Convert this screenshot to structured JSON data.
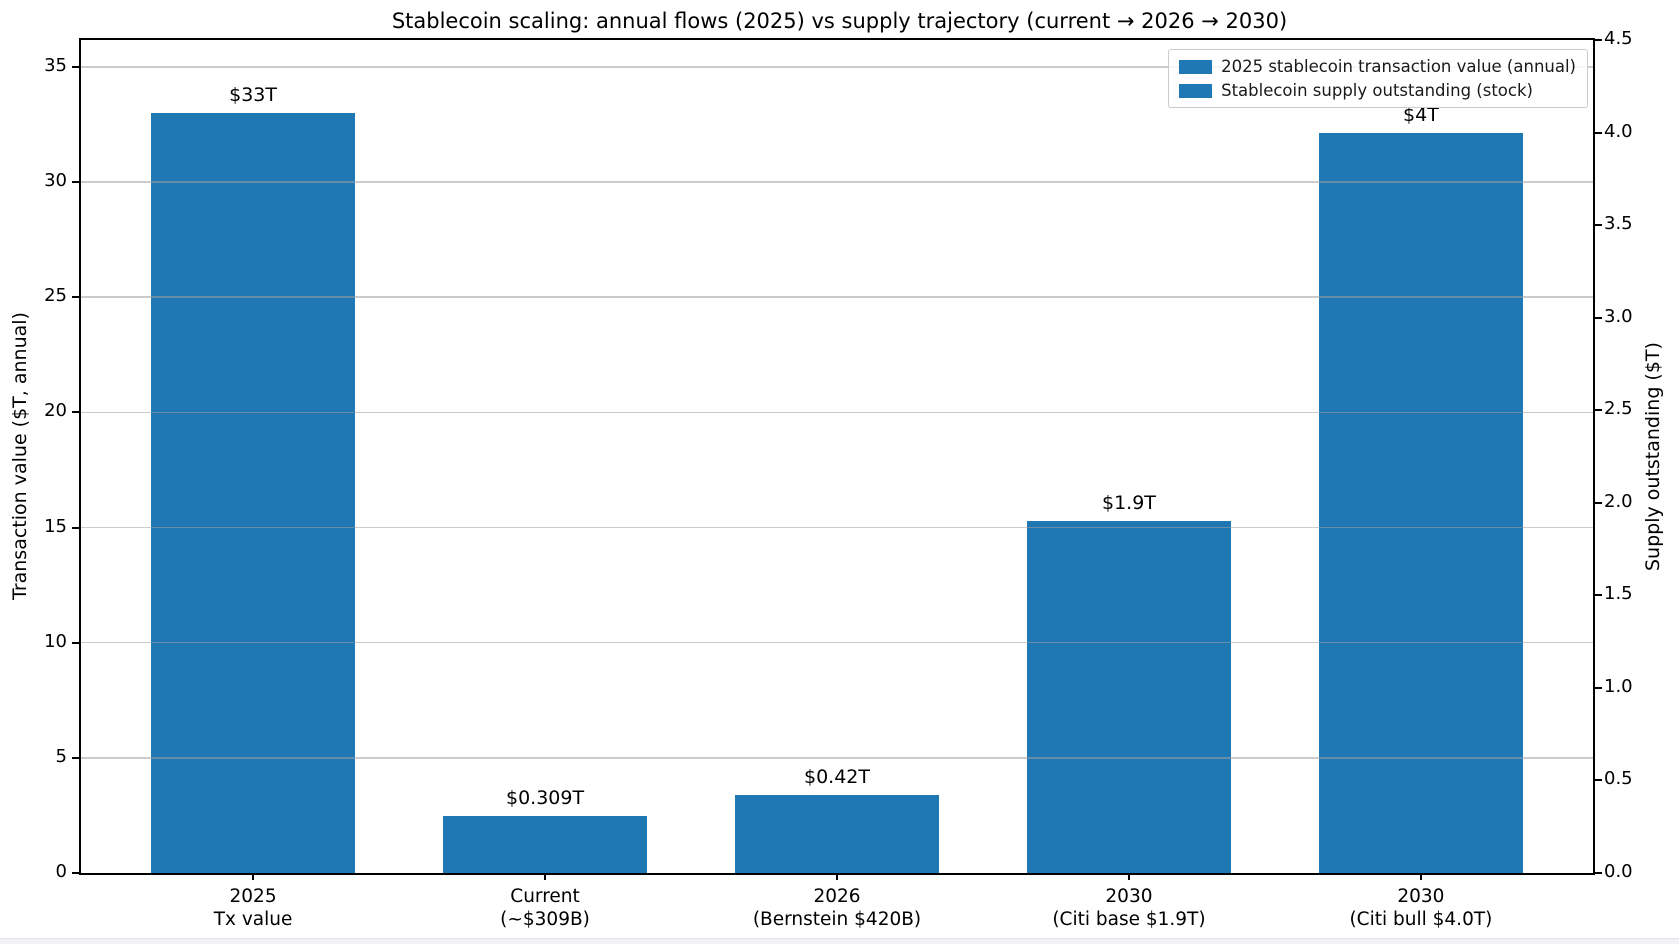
{
  "chart_data": {
    "type": "bar",
    "title": "Stablecoin scaling: annual flows (2025) vs supply trajectory (current → 2026 → 2030)",
    "bar_color": "#1f77b4",
    "grid": true,
    "legend_position": "upper right",
    "legend": [
      "2025 stablecoin transaction value (annual)",
      "Stablecoin supply outstanding (stock)"
    ],
    "categories": [
      "2025\nTx value",
      "Current\n(~$309B)",
      "2026\n(Bernstein $420B)",
      "2030\n(Citi base $1.9T)",
      "2030\n(Citi bull $4.0T)"
    ],
    "left_axis": {
      "label": "Transaction value ($T, annual)",
      "ticks": [
        0,
        5,
        10,
        15,
        20,
        25,
        30,
        35
      ],
      "range": [
        0,
        36.17
      ]
    },
    "right_axis": {
      "label": "Supply outstanding ($T)",
      "ticks": [
        "0.0",
        "0.5",
        "1.0",
        "1.5",
        "2.0",
        "2.5",
        "3.0",
        "3.5",
        "4.0",
        "4.5"
      ],
      "range": [
        0,
        4.5
      ]
    },
    "series": [
      {
        "name": "2025 stablecoin transaction value (annual)",
        "axis": "left",
        "points": [
          {
            "category": 0,
            "value": 33,
            "label": "$33T"
          }
        ]
      },
      {
        "name": "Stablecoin supply outstanding (stock)",
        "axis": "right",
        "points": [
          {
            "category": 1,
            "value": 0.309,
            "label": "$0.309T"
          },
          {
            "category": 2,
            "value": 0.42,
            "label": "$0.42T"
          },
          {
            "category": 3,
            "value": 1.9,
            "label": "$1.9T"
          },
          {
            "category": 4,
            "value": 4.0,
            "label": "$4T"
          }
        ]
      }
    ]
  }
}
